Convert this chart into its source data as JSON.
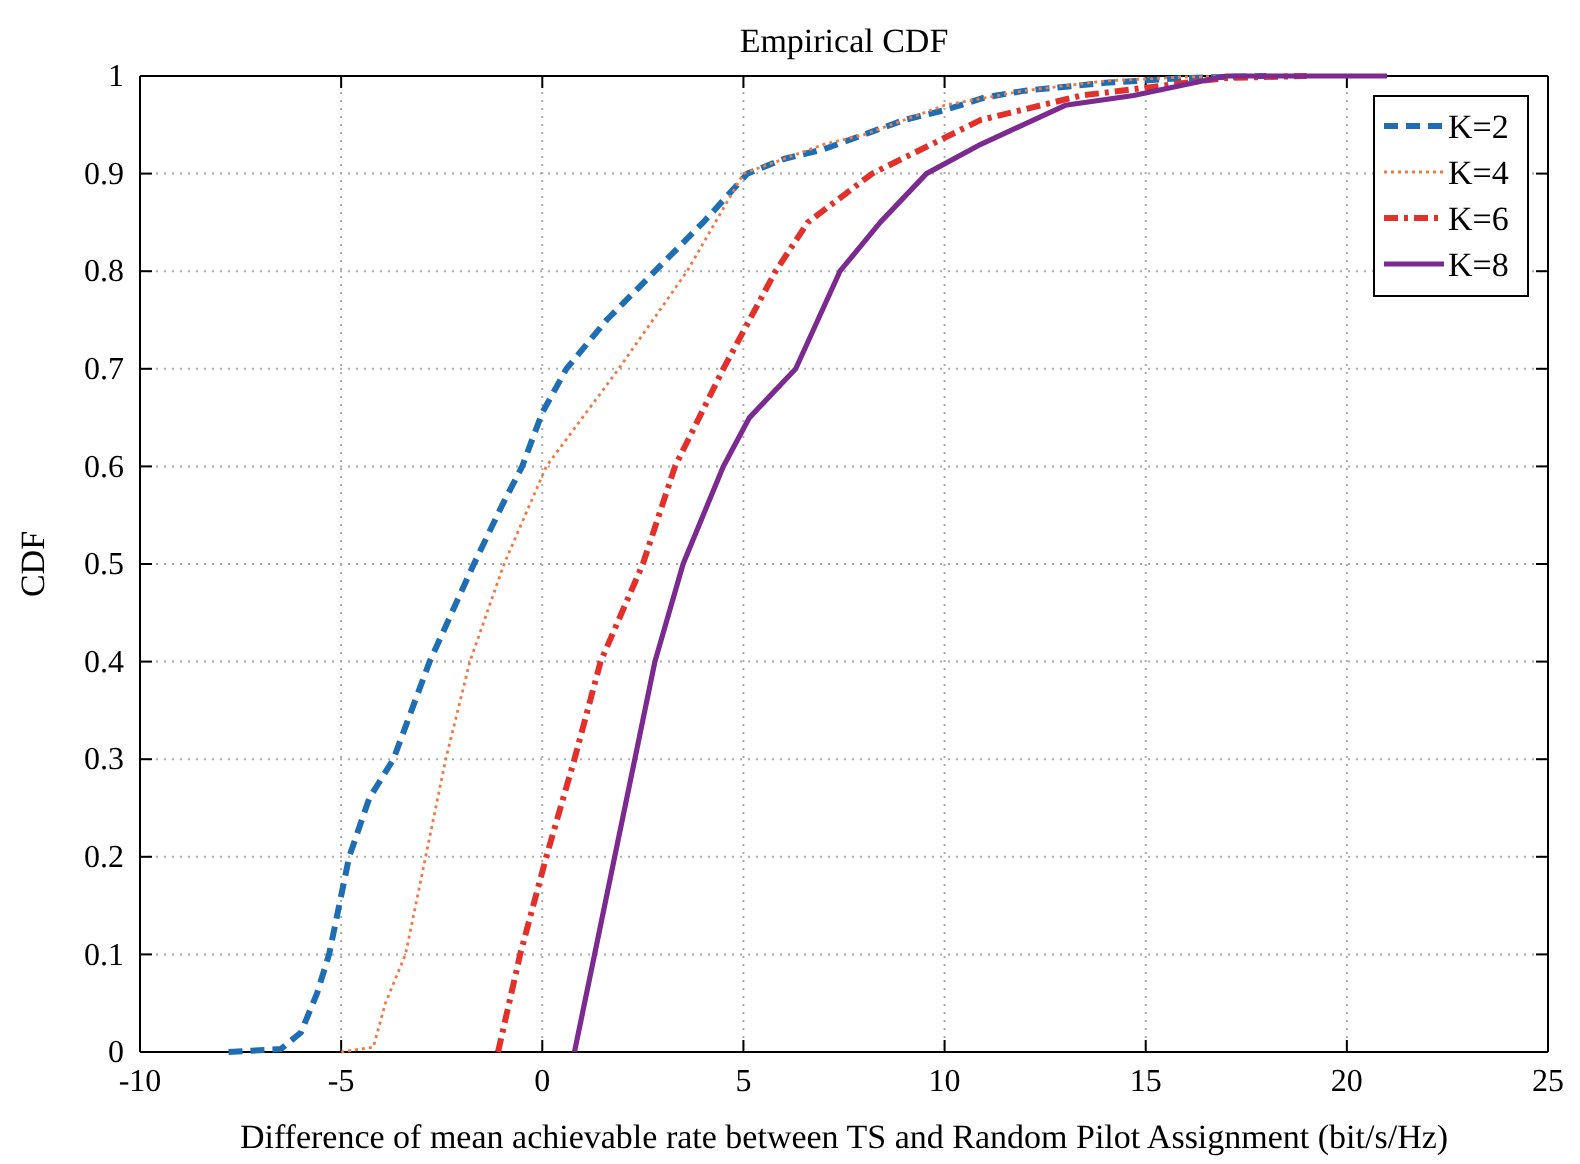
{
  "chart_data": {
    "type": "line",
    "title": "Empirical CDF",
    "xlabel": "Difference of mean achievable rate between TS and Random Pilot Assignment (bit/s/Hz)",
    "ylabel": "CDF",
    "xlim": [
      -10,
      25
    ],
    "xticks": [
      -10,
      -5,
      0,
      5,
      10,
      15,
      20,
      25
    ],
    "ylim": [
      0,
      1
    ],
    "yticks": [
      0,
      0.1,
      0.2,
      0.3,
      0.4,
      0.5,
      0.6,
      0.7,
      0.8,
      0.9,
      1
    ],
    "grid": true,
    "legend": "top right",
    "marker": "none",
    "series": [
      {
        "name": "K=2",
        "color": "#1f6eb4",
        "line_style": "dashed",
        "x": [
          -7.8,
          -6.5,
          -6,
          -5.6,
          -5.3,
          -4.8,
          -4.3,
          -3.7,
          -2.8,
          -1.7,
          -1,
          -0.5,
          0,
          0.6,
          1.6,
          2.8,
          4,
          5.1,
          6,
          7,
          8,
          9,
          10,
          11,
          12,
          14,
          16,
          18
        ],
        "values": [
          0,
          0.003,
          0.02,
          0.06,
          0.1,
          0.2,
          0.26,
          0.3,
          0.4,
          0.5,
          0.56,
          0.6,
          0.655,
          0.7,
          0.75,
          0.8,
          0.85,
          0.9,
          0.915,
          0.925,
          0.94,
          0.955,
          0.965,
          0.978,
          0.985,
          0.993,
          0.998,
          1
        ]
      },
      {
        "name": "K=4",
        "color": "#f07a45",
        "line_style": "dotted",
        "x": [
          -5,
          -4.2,
          -3.9,
          -3.4,
          -2.9,
          -2.4,
          -1.8,
          -0.95,
          0.1,
          1.9,
          3.6,
          5,
          7,
          8,
          10,
          12,
          14,
          16,
          18
        ],
        "values": [
          0,
          0.005,
          0.05,
          0.1,
          0.2,
          0.3,
          0.4,
          0.5,
          0.6,
          0.7,
          0.8,
          0.9,
          0.93,
          0.94,
          0.97,
          0.985,
          0.995,
          0.999,
          1
        ]
      },
      {
        "name": "K=6",
        "color": "#e3302b",
        "line_style": "dashdot",
        "x": [
          -1.1,
          -0.55,
          0.1,
          0.8,
          1.45,
          2.5,
          3.3,
          4.5,
          5.8,
          6.6,
          8.2,
          10.9,
          13.4,
          17,
          19
        ],
        "values": [
          0,
          0.1,
          0.2,
          0.3,
          0.4,
          0.5,
          0.6,
          0.7,
          0.8,
          0.85,
          0.9,
          0.955,
          0.98,
          0.998,
          1
        ]
      },
      {
        "name": "K=8",
        "color": "#7b2a90",
        "line_style": "solid",
        "x": [
          0.8,
          1.3,
          1.8,
          2.3,
          2.8,
          3.5,
          4.5,
          5.15,
          6.3,
          7.4,
          8.4,
          9.55,
          10.9,
          13,
          14.7,
          17,
          21
        ],
        "values": [
          0,
          0.1,
          0.2,
          0.3,
          0.4,
          0.5,
          0.6,
          0.65,
          0.7,
          0.8,
          0.85,
          0.9,
          0.93,
          0.97,
          0.98,
          1,
          1
        ]
      }
    ]
  }
}
